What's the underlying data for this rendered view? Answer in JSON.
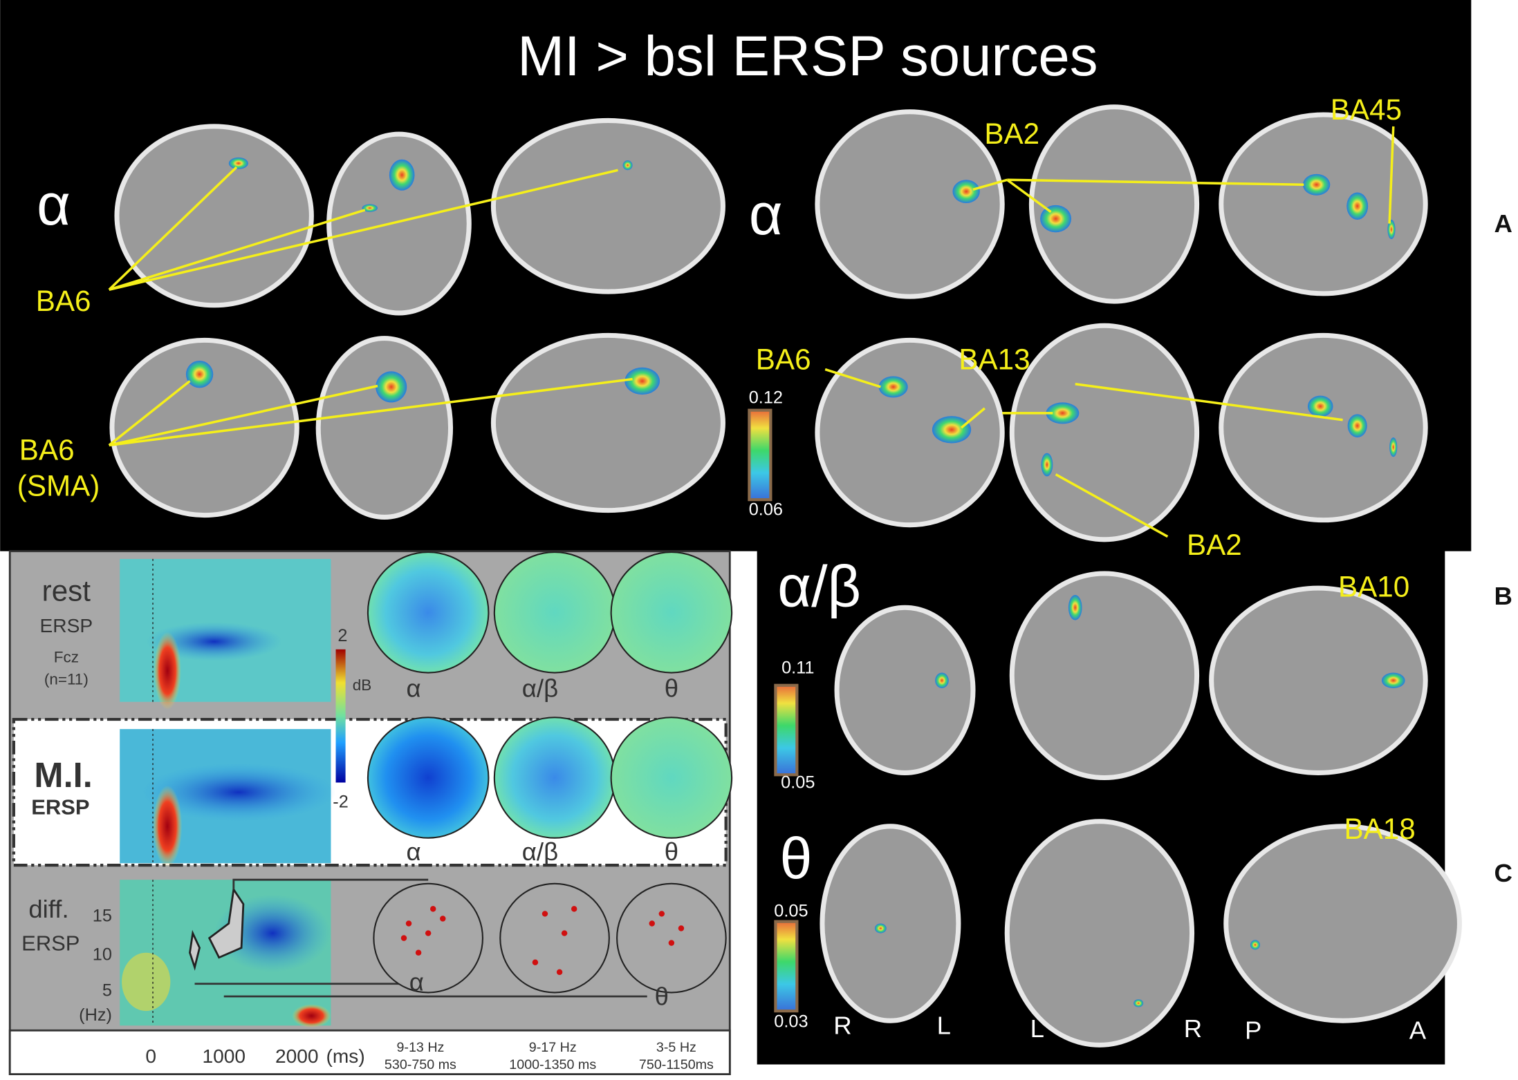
{
  "title": "MI > bsl ERSP sources",
  "panel_letters": [
    "A",
    "B",
    "C"
  ],
  "band_labels": [
    "α",
    "α",
    "α/β",
    "θ"
  ],
  "region_labels": [
    "BA6",
    "BA6",
    "(SMA)",
    "BA2",
    "BA45",
    "BA6",
    "BA13",
    "BA2",
    "BA10",
    "BA18"
  ],
  "colorbars": [
    {
      "max": "0.12",
      "min": "0.06"
    },
    {
      "max": "0.11",
      "min": "0.05"
    },
    {
      "max": "0.05",
      "min": "0.03"
    }
  ],
  "orientation": [
    "R",
    "L",
    "L",
    "R",
    "P",
    "A"
  ],
  "ersp": {
    "rest": [
      "rest",
      "ERSP",
      "Fcz",
      "(n=11)"
    ],
    "mi": [
      "M.I.",
      "ERSP"
    ],
    "diff": [
      "diff.",
      "ERSP"
    ],
    "db_scale": [
      "2",
      "dB",
      "-2"
    ],
    "topo_labels": [
      "α",
      "α/β",
      "θ"
    ],
    "freq_ticks": [
      "15",
      "10",
      "5",
      "(Hz)"
    ],
    "time_ticks": [
      "0",
      "1000",
      "2000",
      "(ms)"
    ],
    "annotations": [
      "α",
      "θ"
    ],
    "windows": [
      [
        "9-13 Hz",
        "530-750 ms"
      ],
      [
        "9-17 Hz",
        "1000-1350 ms"
      ],
      [
        "3-5 Hz",
        "750-1150ms"
      ]
    ]
  }
}
